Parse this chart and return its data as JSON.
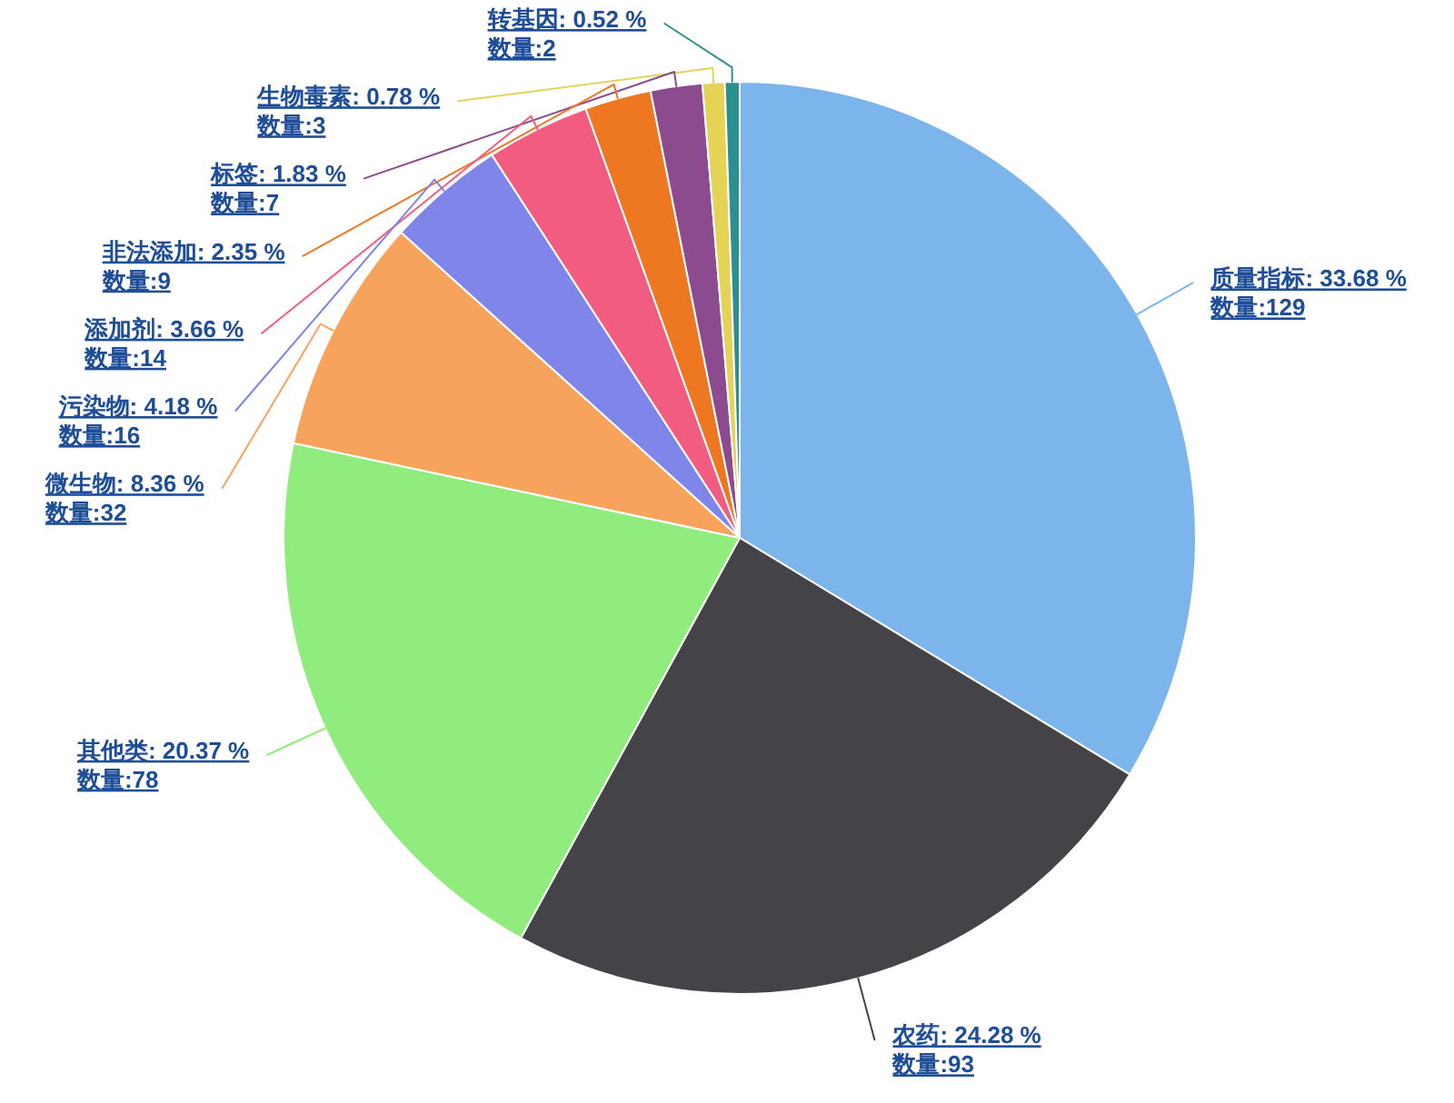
{
  "chart_data": {
    "type": "pie",
    "categories": [
      "质量指标",
      "农药",
      "其他类",
      "微生物",
      "污染物",
      "添加剂",
      "非法添加",
      "标签",
      "生物毒素",
      "转基因"
    ],
    "values": [
      129,
      93,
      78,
      32,
      16,
      14,
      9,
      7,
      3,
      2
    ],
    "colors": [
      "#7cb5ec",
      "#434348",
      "#90ed7d",
      "#f7a35c",
      "#8085e9",
      "#f15c80",
      "#ee7722",
      "#8c4b8e",
      "#e4d354",
      "#2b908f"
    ],
    "value_labels": [
      "33.68 %\n数量:129",
      "24.28 %\n数量:93",
      "20.37 %\n数量:78",
      "8.36 %\n数量:32",
      "4.18 %\n数量:16",
      "3.66 %\n数量:14",
      "2.35 %\n数量:9",
      "1.83 %\n数量:7",
      "0.78 %\n数量:3",
      "0.52 %\n数量:2"
    ]
  }
}
